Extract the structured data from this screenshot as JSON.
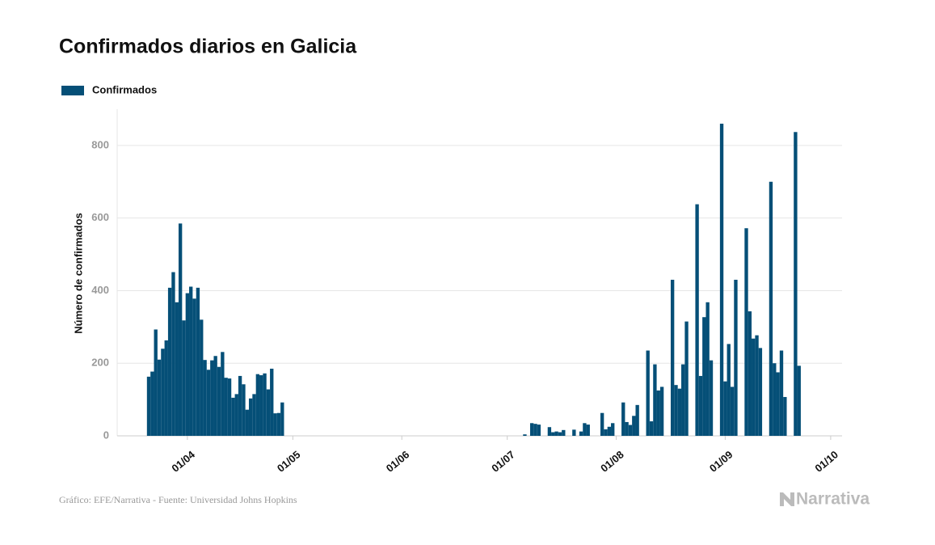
{
  "chart_data": {
    "type": "bar",
    "title": "Confirmados diarios en Galicia",
    "y_label": "Número de confirmados",
    "source": "Gráfico: EFE/Narrativa - Fuente: Universidad Johns Hopkins",
    "logo": "Narrativa",
    "series": [
      {
        "name": "Confirmados",
        "color": "#054f77",
        "values": [
          163,
          177,
          293,
          210,
          240,
          263,
          408,
          451,
          368,
          585,
          318,
          393,
          411,
          378,
          408,
          320,
          209,
          182,
          208,
          220,
          190,
          231,
          160,
          158,
          105,
          115,
          165,
          142,
          72,
          103,
          115,
          170,
          167,
          172,
          128,
          185,
          62,
          63,
          92,
          0,
          0,
          0,
          0,
          0,
          0,
          0,
          0,
          0,
          0,
          0,
          0,
          0,
          0,
          0,
          0,
          0,
          0,
          0,
          0,
          0,
          0,
          0,
          0,
          0,
          0,
          0,
          0,
          0,
          0,
          0,
          0,
          0,
          0,
          0,
          0,
          0,
          0,
          0,
          0,
          0,
          0,
          0,
          0,
          0,
          0,
          0,
          0,
          0,
          0,
          0,
          0,
          0,
          0,
          0,
          0,
          0,
          0,
          0,
          0,
          0,
          0,
          0,
          0,
          0,
          0,
          0,
          0,
          4,
          0,
          35,
          33,
          31,
          null,
          null,
          24,
          10,
          12,
          10,
          16,
          null,
          null,
          17,
          null,
          12,
          35,
          31,
          null,
          null,
          null,
          63,
          18,
          25,
          35,
          null,
          null,
          92,
          38,
          30,
          55,
          85,
          null,
          null,
          235,
          40,
          197,
          125,
          135,
          null,
          null,
          430,
          140,
          130,
          197,
          315,
          null,
          null,
          638,
          165,
          327,
          368,
          208,
          null,
          null,
          860,
          150,
          253,
          135,
          430,
          null,
          null,
          572,
          343,
          268,
          277,
          242,
          null,
          null,
          700,
          200,
          175,
          235,
          107,
          null,
          null,
          837,
          193,
          null,
          null,
          null,
          null,
          null,
          null,
          null,
          null,
          null
        ]
      }
    ],
    "categories": [
      "21/03",
      "22/03",
      "23/03",
      "24/03",
      "25/03",
      "26/03",
      "27/03",
      "28/03",
      "29/03",
      "30/03",
      "31/03",
      "01/04",
      "02/04",
      "03/04",
      "04/04",
      "05/04",
      "06/04",
      "07/04",
      "08/04",
      "09/04",
      "10/04",
      "11/04",
      "12/04",
      "13/04",
      "14/04",
      "15/04",
      "16/04",
      "17/04",
      "18/04",
      "19/04",
      "20/04",
      "21/04",
      "22/04",
      "23/04",
      "24/04",
      "25/04",
      "26/04",
      "27/04",
      "28/04",
      "29/04",
      "30/04",
      "01/05",
      "02/05",
      "03/05",
      "04/05",
      "05/05",
      "06/05",
      "07/05",
      "08/05",
      "09/05",
      "10/05",
      "11/05",
      "12/05",
      "13/05",
      "14/05",
      "15/05",
      "16/05",
      "17/05",
      "18/05",
      "19/05",
      "20/05",
      "21/05",
      "22/05",
      "23/05",
      "24/05",
      "25/05",
      "26/05",
      "27/05",
      "28/05",
      "29/05",
      "30/05",
      "31/05",
      "01/06",
      "02/06",
      "03/06",
      "04/06",
      "05/06",
      "06/06",
      "07/06",
      "08/06",
      "09/06",
      "10/06",
      "11/06",
      "12/06",
      "13/06",
      "14/06",
      "15/06",
      "16/06",
      "17/06",
      "18/06",
      "19/06",
      "20/06",
      "21/06",
      "22/06",
      "23/06",
      "24/06",
      "25/06",
      "26/06",
      "27/06",
      "28/06",
      "29/06",
      "30/06",
      "01/07",
      "02/07",
      "03/07",
      "04/07",
      "05/07",
      "06/07",
      "07/07",
      "08/07",
      "09/07",
      "10/07",
      "11/07",
      "12/07",
      "13/07",
      "14/07",
      "15/07",
      "16/07",
      "17/07",
      "18/07",
      "19/07",
      "20/07",
      "21/07",
      "22/07",
      "23/07",
      "24/07",
      "25/07",
      "26/07",
      "27/07",
      "28/07",
      "29/07",
      "30/07",
      "31/07",
      "01/08",
      "02/08",
      "03/08",
      "04/08",
      "05/08",
      "06/08",
      "07/08",
      "08/08",
      "09/08",
      "10/08",
      "11/08",
      "12/08",
      "13/08",
      "14/08",
      "15/08",
      "16/08",
      "17/08",
      "18/08",
      "19/08",
      "20/08",
      "21/08",
      "22/08",
      "23/08",
      "24/08",
      "25/08",
      "26/08",
      "27/08",
      "28/08",
      "29/08",
      "30/08",
      "31/08",
      "01/09",
      "02/09",
      "03/09",
      "04/09",
      "05/09",
      "06/09",
      "07/09",
      "08/09",
      "09/09",
      "10/09",
      "11/09",
      "12/09",
      "13/09",
      "14/09",
      "15/09",
      "16/09",
      "17/09",
      "18/09",
      "19/09",
      "20/09",
      "21/09",
      "22/09",
      "23/09",
      "24/09",
      "25/09",
      "26/09",
      "27/09",
      "28/09",
      "29/09",
      "30/09",
      "01/10"
    ],
    "xticks": [
      "01/04",
      "01/05",
      "01/06",
      "01/07",
      "01/08",
      "01/09",
      "01/10"
    ],
    "ylim": [
      0,
      900
    ],
    "yticks": [
      0,
      200,
      400,
      600,
      800
    ],
    "grid": true,
    "legend": "top-left"
  }
}
